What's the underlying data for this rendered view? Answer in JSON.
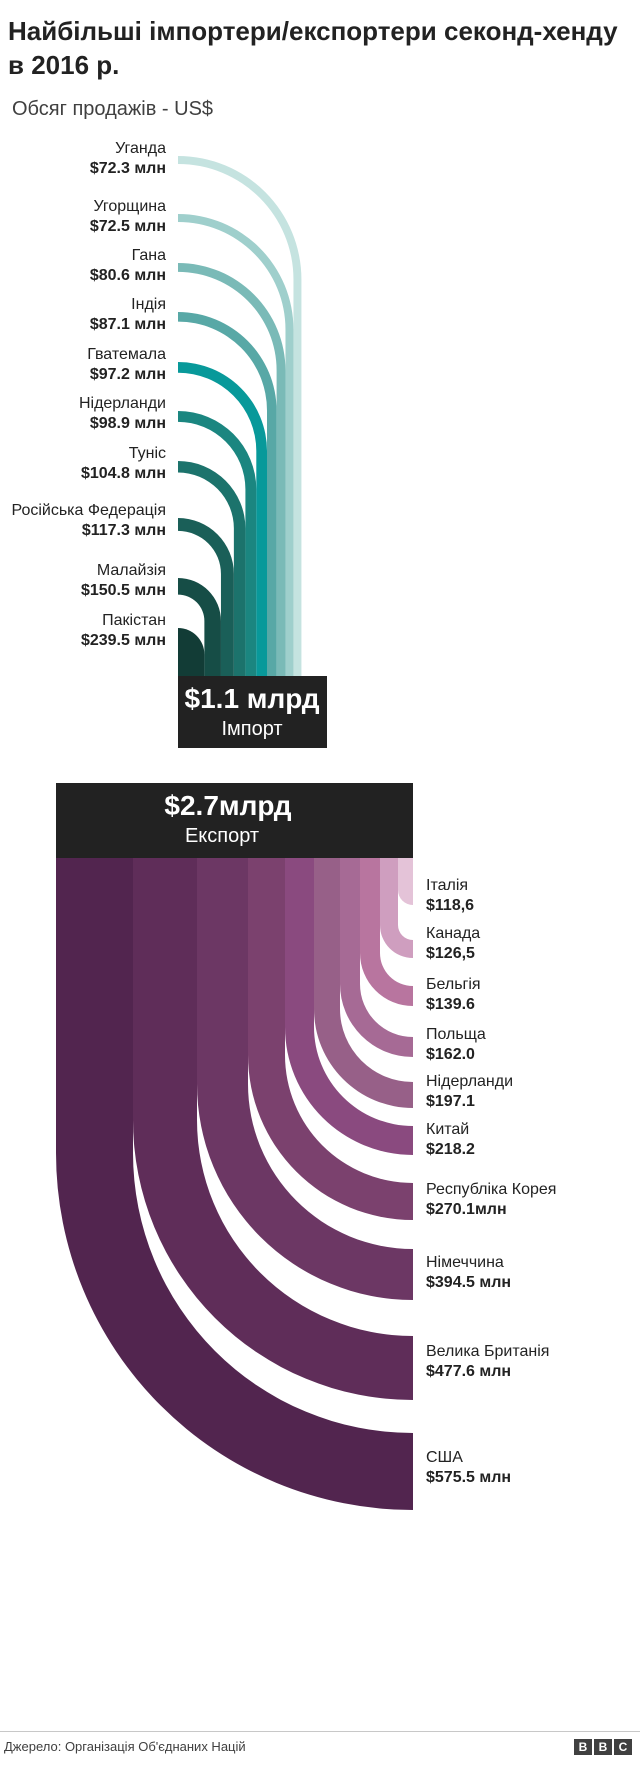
{
  "title": "Найбільші імпортери/експортери секонд-хенду в 2016 р.",
  "subtitle": "Обсяг продажів - US$",
  "source": "Джерело: Організація Об'єднаних Націй",
  "logo": [
    "B",
    "B",
    "C"
  ],
  "chart_data": [
    {
      "type": "arc-bar",
      "name": "imports",
      "total_label": "$1.1 млрд",
      "total_caption": "Імпорт",
      "box_color": "#222222",
      "items": [
        {
          "country": "Уганда",
          "label": "$72.3 млн",
          "value": 72.3,
          "color": "#c5e3e0"
        },
        {
          "country": "Угорщина",
          "label": "$72.5 млн",
          "value": 72.5,
          "color": "#9fcfcc"
        },
        {
          "country": "Гана",
          "label": "$80.6 млн",
          "value": 80.6,
          "color": "#7abab7"
        },
        {
          "country": "Індія",
          "label": "$87.1 млн",
          "value": 87.1,
          "color": "#58a8a6"
        },
        {
          "country": "Гватемала",
          "label": "$97.2 млн",
          "value": 97.2,
          "color": "#08999a"
        },
        {
          "country": "Нідерланди",
          "label": "$98.9 млн",
          "value": 98.9,
          "color": "#1b8680"
        },
        {
          "country": "Туніс",
          "label": "$104.8 млн",
          "value": 104.8,
          "color": "#1c736c"
        },
        {
          "country": "Російська Федерація",
          "label": "$117.3 млн",
          "value": 117.3,
          "color": "#1a5f58"
        },
        {
          "country": "Малайзія",
          "label": "$150.5 млн",
          "value": 150.5,
          "color": "#164d46"
        },
        {
          "country": "Пакістан",
          "label": "$239.5 млн",
          "value": 239.5,
          "color": "#123c36"
        }
      ]
    },
    {
      "type": "arc-bar",
      "name": "exports",
      "total_label": "$2.7млрд",
      "total_caption": "Експорт",
      "box_color": "#222222",
      "items": [
        {
          "country": "Італія",
          "label": "$118,6",
          "value": 118.6,
          "color": "#e4c3d8"
        },
        {
          "country": "Канада",
          "label": "$126,5",
          "value": 126.5,
          "color": "#cf9ebf"
        },
        {
          "country": "Бельгія",
          "label": "$139.6",
          "value": 139.6,
          "color": "#b8759f"
        },
        {
          "country": "Польща",
          "label": "$162.0",
          "value": 162.0,
          "color": "#a66a95"
        },
        {
          "country": "Нідерланди",
          "label": "$197.1",
          "value": 197.1,
          "color": "#976088"
        },
        {
          "country": "Китай",
          "label": "$218.2",
          "value": 218.2,
          "color": "#8a4a7f"
        },
        {
          "country": "Республіка Корея",
          "label": "$270.1млн",
          "value": 270.1,
          "color": "#7b416e"
        },
        {
          "country": "Німеччина",
          "label": "$394.5 млн",
          "value": 394.5,
          "color": "#6c3764"
        },
        {
          "country": "Велика Британія",
          "label": "$477.6 млн",
          "value": 477.6,
          "color": "#5f2d59"
        },
        {
          "country": "США",
          "label": "$575.5 млн",
          "value": 575.5,
          "color": "#52254f"
        }
      ]
    }
  ]
}
